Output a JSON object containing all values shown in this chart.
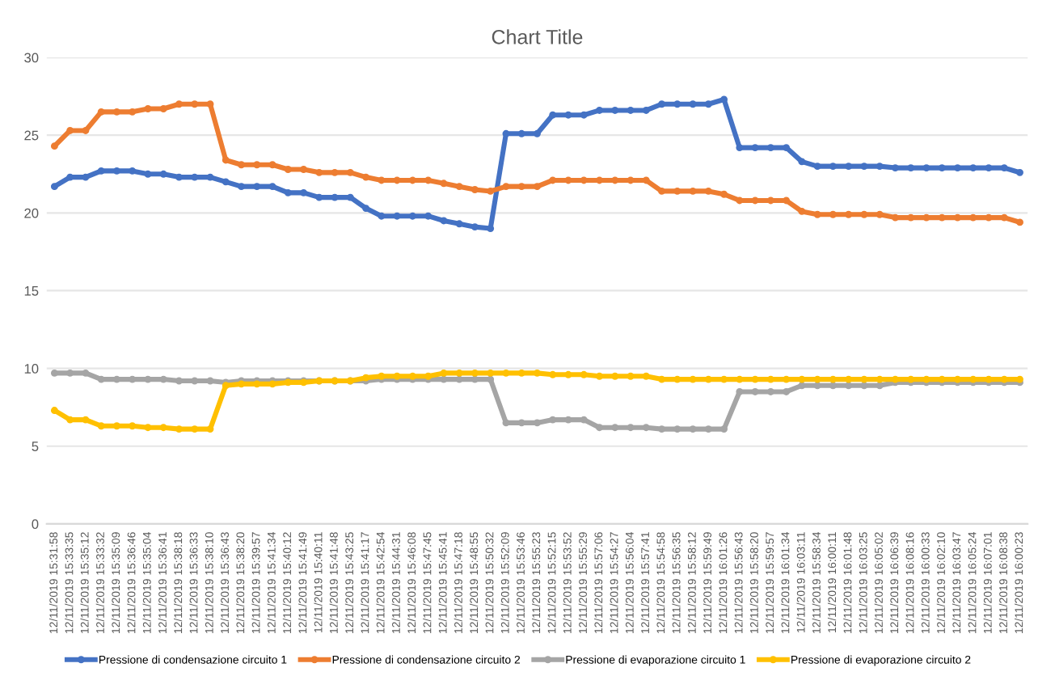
{
  "chart_data": {
    "type": "line",
    "title": "Chart Title",
    "categories": [
      "12/11/2019 15:31:58",
      "12/11/2019 15:33:35",
      "12/11/2019 15:35:12",
      "12/11/2019 15:33:32",
      "12/11/2019 15:35:09",
      "12/11/2019 15:36:46",
      "12/11/2019 15:35:04",
      "12/11/2019 15:36:41",
      "12/11/2019 15:38:18",
      "12/11/2019 15:36:33",
      "12/11/2019 15:38:10",
      "12/11/2019 15:36:43",
      "12/11/2019 15:38:20",
      "12/11/2019 15:39:57",
      "12/11/2019 15:41:34",
      "12/11/2019 15:40:12",
      "12/11/2019 15:41:49",
      "12/11/2019 15:40:11",
      "12/11/2019 15:41:48",
      "12/11/2019 15:43:25",
      "12/11/2019 15:41:17",
      "12/11/2019 15:42:54",
      "12/11/2019 15:44:31",
      "12/11/2019 15:46:08",
      "12/11/2019 15:47:45",
      "12/11/2019 15:45:41",
      "12/11/2019 15:47:18",
      "12/11/2019 15:48:55",
      "12/11/2019 15:50:32",
      "12/11/2019 15:52:09",
      "12/11/2019 15:53:46",
      "12/11/2019 15:55:23",
      "12/11/2019 15:52:15",
      "12/11/2019 15:53:52",
      "12/11/2019 15:55:29",
      "12/11/2019 15:57:06",
      "12/11/2019 15:54:27",
      "12/11/2019 15:56:04",
      "12/11/2019 15:57:41",
      "12/11/2019 15:54:58",
      "12/11/2019 15:56:35",
      "12/11/2019 15:58:12",
      "12/11/2019 15:59:49",
      "12/11/2019 16:01:26",
      "12/11/2019 15:56:43",
      "12/11/2019 15:58:20",
      "12/11/2019 15:59:57",
      "12/11/2019 16:01:34",
      "12/11/2019 16:03:11",
      "12/11/2019 15:58:34",
      "12/11/2019 16:00:11",
      "12/11/2019 16:01:48",
      "12/11/2019 16:03:25",
      "12/11/2019 16:05:02",
      "12/11/2019 16:06:39",
      "12/11/2019 16:08:16",
      "12/11/2019 16:00:33",
      "12/11/2019 16:02:10",
      "12/11/2019 16:03:47",
      "12/11/2019 16:05:24",
      "12/11/2019 16:07:01",
      "12/11/2019 16:08:38",
      "12/11/2019 16:00:23"
    ],
    "series": [
      {
        "name": "Pressione di condensazione circuito 1",
        "color": "#4472c4",
        "values": [
          21.7,
          22.3,
          22.3,
          22.7,
          22.7,
          22.7,
          22.5,
          22.5,
          22.3,
          22.3,
          22.3,
          22.0,
          21.7,
          21.7,
          21.7,
          21.3,
          21.3,
          21.0,
          21.0,
          21.0,
          20.3,
          19.8,
          19.8,
          19.8,
          19.8,
          19.5,
          19.3,
          19.1,
          19.0,
          25.1,
          25.1,
          25.1,
          26.3,
          26.3,
          26.3,
          26.6,
          26.6,
          26.6,
          26.6,
          27.0,
          27.0,
          27.0,
          27.0,
          27.3,
          24.2,
          24.2,
          24.2,
          24.2,
          23.3,
          23.0,
          23.0,
          23.0,
          23.0,
          23.0,
          22.9,
          22.9,
          22.9,
          22.9,
          22.9,
          22.9,
          22.9,
          22.9,
          22.6
        ]
      },
      {
        "name": "Pressione di condensazione circuito 2",
        "color": "#ed7d31",
        "values": [
          24.3,
          25.3,
          25.3,
          26.5,
          26.5,
          26.5,
          26.7,
          26.7,
          27.0,
          27.0,
          27.0,
          23.4,
          23.1,
          23.1,
          23.1,
          22.8,
          22.8,
          22.6,
          22.6,
          22.6,
          22.3,
          22.1,
          22.1,
          22.1,
          22.1,
          21.9,
          21.7,
          21.5,
          21.4,
          21.7,
          21.7,
          21.7,
          22.1,
          22.1,
          22.1,
          22.1,
          22.1,
          22.1,
          22.1,
          21.4,
          21.4,
          21.4,
          21.4,
          21.2,
          20.8,
          20.8,
          20.8,
          20.8,
          20.1,
          19.9,
          19.9,
          19.9,
          19.9,
          19.9,
          19.7,
          19.7,
          19.7,
          19.7,
          19.7,
          19.7,
          19.7,
          19.7,
          19.4
        ]
      },
      {
        "name": "Pressione di evaporazione circuito 1",
        "color": "#a5a5a5",
        "values": [
          9.7,
          9.7,
          9.7,
          9.3,
          9.3,
          9.3,
          9.3,
          9.3,
          9.2,
          9.2,
          9.2,
          9.1,
          9.2,
          9.2,
          9.2,
          9.2,
          9.2,
          9.2,
          9.2,
          9.2,
          9.2,
          9.3,
          9.3,
          9.3,
          9.3,
          9.3,
          9.3,
          9.3,
          9.3,
          6.5,
          6.5,
          6.5,
          6.7,
          6.7,
          6.7,
          6.2,
          6.2,
          6.2,
          6.2,
          6.1,
          6.1,
          6.1,
          6.1,
          6.1,
          8.5,
          8.5,
          8.5,
          8.5,
          8.9,
          8.9,
          8.9,
          8.9,
          8.9,
          8.9,
          9.1,
          9.1,
          9.1,
          9.1,
          9.1,
          9.1,
          9.1,
          9.1,
          9.1
        ]
      },
      {
        "name": "Pressione di evaporazione circuito 2",
        "color": "#ffc000",
        "values": [
          7.3,
          6.7,
          6.7,
          6.3,
          6.3,
          6.3,
          6.2,
          6.2,
          6.1,
          6.1,
          6.1,
          8.9,
          9.0,
          9.0,
          9.0,
          9.1,
          9.1,
          9.2,
          9.2,
          9.2,
          9.4,
          9.5,
          9.5,
          9.5,
          9.5,
          9.7,
          9.7,
          9.7,
          9.7,
          9.7,
          9.7,
          9.7,
          9.6,
          9.6,
          9.6,
          9.5,
          9.5,
          9.5,
          9.5,
          9.3,
          9.3,
          9.3,
          9.3,
          9.3,
          9.3,
          9.3,
          9.3,
          9.3,
          9.3,
          9.3,
          9.3,
          9.3,
          9.3,
          9.3,
          9.3,
          9.3,
          9.3,
          9.3,
          9.3,
          9.3,
          9.3,
          9.3,
          9.3
        ]
      }
    ],
    "ylim": [
      0,
      30
    ],
    "yticks": [
      0,
      5,
      10,
      15,
      20,
      25,
      30
    ],
    "grid": "y",
    "legend": "bottom",
    "marker": "circle",
    "line_style": "solid"
  }
}
